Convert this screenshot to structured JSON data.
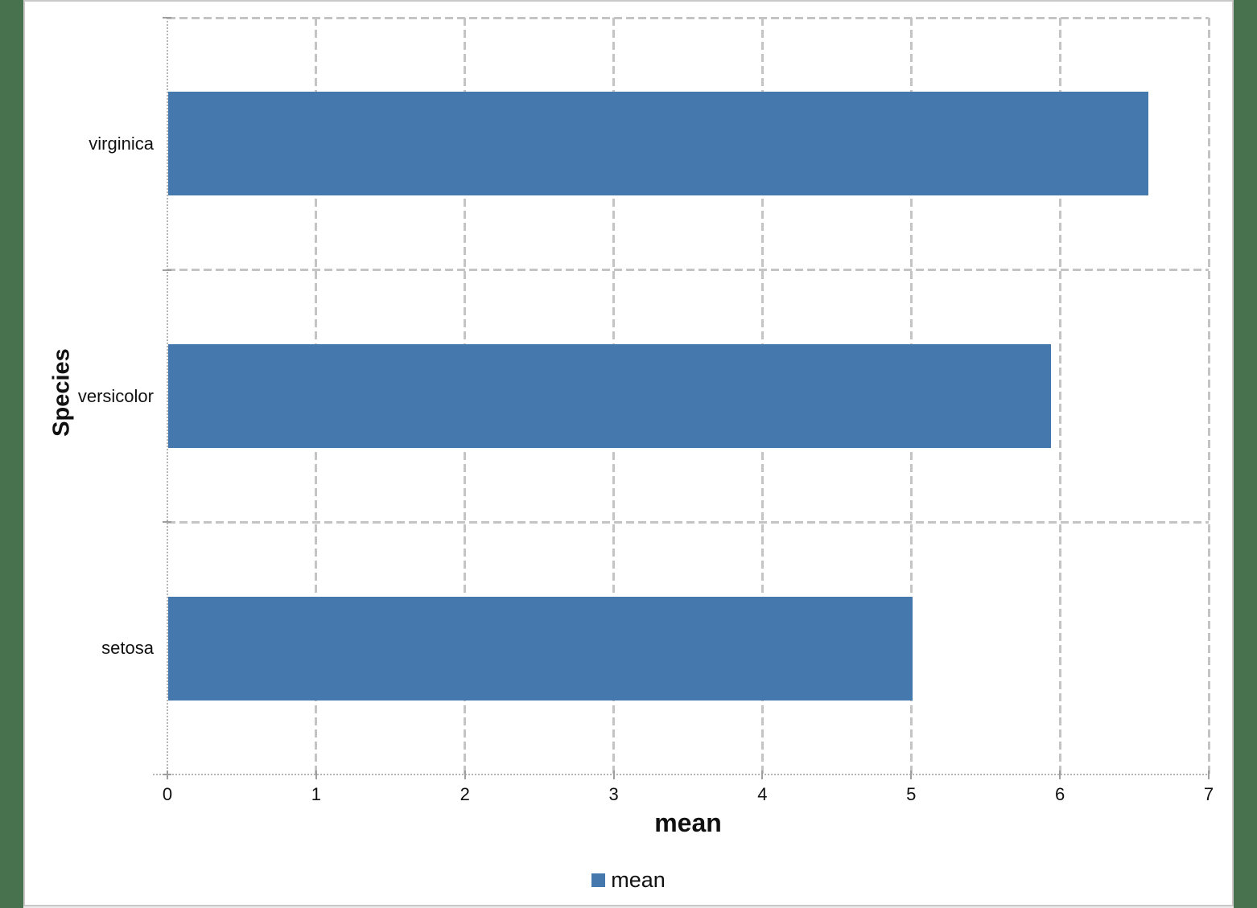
{
  "window": {
    "background_color": "#48724E",
    "chart_border_color": "#C8C8C8",
    "chart_background_color": "#FFFFFF"
  },
  "chart": {
    "colors": {
      "bar": "#4579AD",
      "gridline": "#C4C4C4",
      "axis_line": "#B5B5B5",
      "tick_mark": "#9E9E9E",
      "text": "#111111"
    },
    "legend": {
      "position": "bottom-center",
      "entries": [
        {
          "label": "mean",
          "color": "#4579AD",
          "swatch": "square"
        }
      ]
    }
  },
  "chart_data": {
    "type": "bar",
    "orientation": "horizontal",
    "title": "",
    "xlabel": "mean",
    "ylabel": "Species",
    "categories": [
      "virginica",
      "versicolor",
      "setosa"
    ],
    "category_order": "top-to-bottom",
    "values": [
      6.588,
      5.936,
      5.006
    ],
    "series": [
      {
        "name": "mean",
        "values": [
          6.588,
          5.936,
          5.006
        ]
      }
    ],
    "xlim": [
      0,
      7
    ],
    "xticks": [
      0,
      1,
      2,
      3,
      4,
      5,
      6,
      7
    ],
    "grid": "dashed major gridlines, both directions",
    "legend_position": "bottom",
    "bar_color": "#4579AD"
  }
}
